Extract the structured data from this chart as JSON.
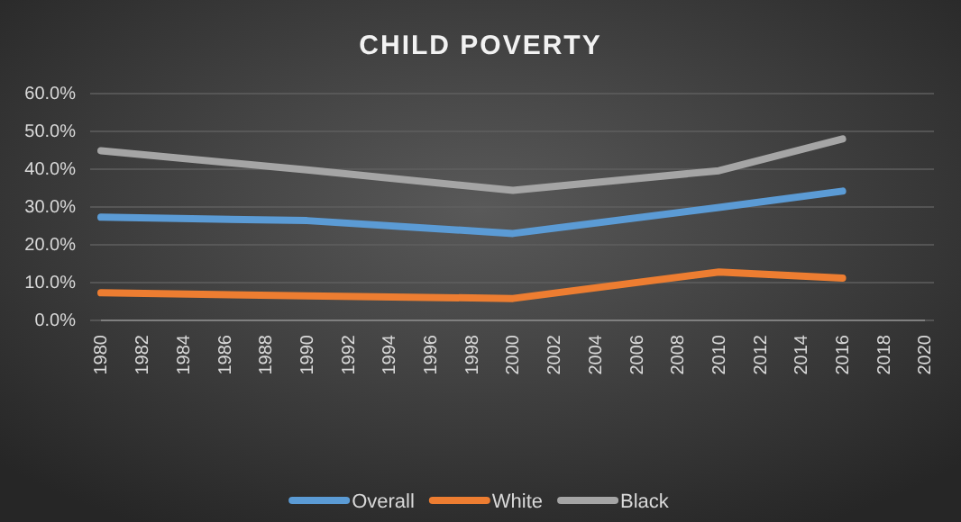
{
  "chart_data": {
    "type": "line",
    "title": "CHILD POVERTY",
    "x": [
      1980,
      1990,
      2000,
      2010,
      2016
    ],
    "series": [
      {
        "name": "Overall",
        "color": "#5b9bd5",
        "values": [
          27.3,
          26.4,
          23.0,
          29.9,
          34.2
        ]
      },
      {
        "name": "White",
        "color": "#ed7d31",
        "values": [
          7.3,
          6.5,
          5.8,
          12.8,
          11.2
        ]
      },
      {
        "name": "Black",
        "color": "#a5a5a5",
        "values": [
          44.9,
          39.8,
          34.4,
          39.6,
          48.0
        ]
      }
    ],
    "xlim": [
      1980,
      2020
    ],
    "xticks": [
      1980,
      1982,
      1984,
      1986,
      1988,
      1990,
      1992,
      1994,
      1996,
      1998,
      2000,
      2002,
      2004,
      2006,
      2008,
      2010,
      2012,
      2014,
      2016,
      2018,
      2020
    ],
    "ylim": [
      0,
      60
    ],
    "yticks": [
      {
        "value": 0,
        "label": "0.0%"
      },
      {
        "value": 10,
        "label": "10.0%"
      },
      {
        "value": 20,
        "label": "20.0%"
      },
      {
        "value": 30,
        "label": "30.0%"
      },
      {
        "value": 40,
        "label": "40.0%"
      },
      {
        "value": 50,
        "label": "50.0%"
      },
      {
        "value": 60,
        "label": "60.0%"
      }
    ],
    "grid": "y",
    "legend": "bottom",
    "marker": "none",
    "line_style": "solid"
  }
}
